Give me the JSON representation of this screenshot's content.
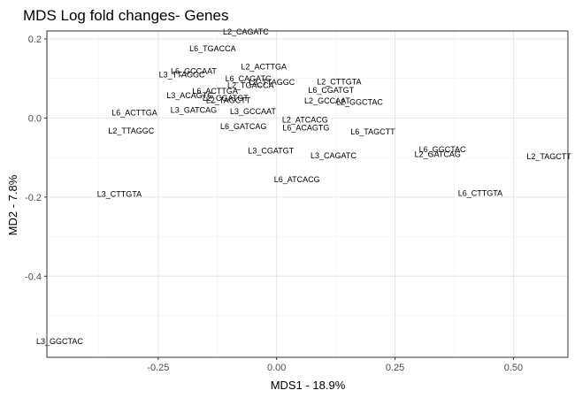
{
  "chart_data": {
    "type": "scatter",
    "title": "MDS Log fold changes- Genes",
    "xlabel": "MDS1 - 18.9%",
    "ylabel": "MD2 - 7.8%",
    "xlim": [
      -0.485,
      0.615
    ],
    "ylim": [
      -0.605,
      0.22
    ],
    "x_ticks": [
      {
        "value": -0.25,
        "label": "-0.25"
      },
      {
        "value": 0.0,
        "label": "0.00"
      },
      {
        "value": 0.25,
        "label": "0.25"
      },
      {
        "value": 0.5,
        "label": "0.50"
      }
    ],
    "y_ticks": [
      {
        "value": -0.4,
        "label": "-0.4"
      },
      {
        "value": -0.2,
        "label": "-0.2"
      },
      {
        "value": 0.0,
        "label": "0.0"
      },
      {
        "value": 0.2,
        "label": "0.2"
      }
    ],
    "grid": true,
    "points": [
      {
        "label": "L2_CAGATC",
        "x": -0.065,
        "y": 0.218
      },
      {
        "label": "L6_TGACCA",
        "x": -0.135,
        "y": 0.175
      },
      {
        "label": "L6_GCCAAT",
        "x": -0.175,
        "y": 0.118
      },
      {
        "label": "L3_TTAGGC",
        "x": -0.2,
        "y": 0.109
      },
      {
        "label": "L2_ACTTGA",
        "x": -0.027,
        "y": 0.129
      },
      {
        "label": "L6_CAGATC",
        "x": -0.06,
        "y": 0.099
      },
      {
        "label": "L2_TGACCA",
        "x": -0.055,
        "y": 0.082
      },
      {
        "label": "L3_TTAGGC",
        "x": -0.01,
        "y": 0.09
      },
      {
        "label": "L2_CTTGTA",
        "x": 0.132,
        "y": 0.092
      },
      {
        "label": "L6_CGATGT",
        "x": 0.115,
        "y": 0.07
      },
      {
        "label": "L6_ACTTGA",
        "x": -0.13,
        "y": 0.068
      },
      {
        "label": "L3_ACAGTG",
        "x": -0.183,
        "y": 0.057
      },
      {
        "label": "L2_CGATGT",
        "x": -0.108,
        "y": 0.05
      },
      {
        "label": "L2_TAGCTT",
        "x": -0.102,
        "y": 0.045
      },
      {
        "label": "L2_GCCAAT",
        "x": 0.107,
        "y": 0.043
      },
      {
        "label": "L2_GGCTAC",
        "x": 0.175,
        "y": 0.04
      },
      {
        "label": "L3_GATCAG",
        "x": -0.175,
        "y": 0.02
      },
      {
        "label": "L3_GCCAAT",
        "x": -0.05,
        "y": 0.017
      },
      {
        "label": "L6_ACTTGA",
        "x": -0.3,
        "y": 0.013
      },
      {
        "label": "L2_ATCACG",
        "x": 0.06,
        "y": -0.005
      },
      {
        "label": "L6_GATCAG",
        "x": -0.07,
        "y": -0.022
      },
      {
        "label": "L6_ACAGTG",
        "x": 0.062,
        "y": -0.025
      },
      {
        "label": "L2_TTAGGC",
        "x": -0.307,
        "y": -0.033
      },
      {
        "label": "L6_TAGCTT",
        "x": 0.203,
        "y": -0.035
      },
      {
        "label": "L6_GGCTAC",
        "x": 0.35,
        "y": -0.08
      },
      {
        "label": "L3_CGATGT",
        "x": -0.012,
        "y": -0.083
      },
      {
        "label": "L2_GATCAG",
        "x": 0.34,
        "y": -0.092
      },
      {
        "label": "L3_CAGATC",
        "x": 0.12,
        "y": -0.095
      },
      {
        "label": "L2_TAGCTT",
        "x": 0.575,
        "y": -0.097
      },
      {
        "label": "L6_ATCACG",
        "x": 0.043,
        "y": -0.156
      },
      {
        "label": "L3_CTTGTA",
        "x": -0.332,
        "y": -0.193
      },
      {
        "label": "L6_CTTGTA",
        "x": 0.43,
        "y": -0.19
      },
      {
        "label": "L3_GGCTAC",
        "x": -0.458,
        "y": -0.565
      }
    ]
  }
}
